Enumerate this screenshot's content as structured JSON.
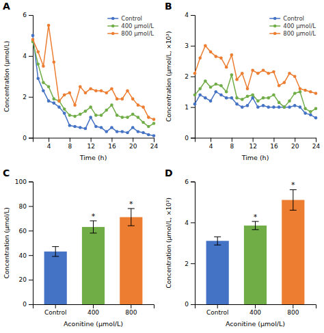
{
  "chart_data": [
    {
      "type": "line",
      "title": "A",
      "xlabel": "Time (h)",
      "ylabel": "Concentration (μmol/L)",
      "x": [
        1,
        2,
        3,
        4,
        5,
        6,
        7,
        8,
        9,
        10,
        11,
        12,
        13,
        14,
        15,
        16,
        17,
        18,
        19,
        20,
        21,
        22,
        23,
        24
      ],
      "xlim": [
        1,
        24
      ],
      "xticks": [
        4,
        8,
        12,
        16,
        20,
        24
      ],
      "ylim": [
        0,
        6
      ],
      "yticks": [
        0,
        2,
        4,
        6
      ],
      "grid": false,
      "legend": "upper right",
      "series": [
        {
          "name": "Control",
          "color": "#4472C4",
          "marker": "circle",
          "values": [
            5.0,
            2.9,
            2.3,
            1.8,
            1.7,
            1.5,
            1.2,
            0.6,
            0.55,
            0.5,
            0.45,
            1.0,
            0.55,
            0.5,
            0.3,
            0.5,
            0.3,
            0.3,
            0.25,
            0.5,
            0.3,
            0.25,
            0.15,
            0.1
          ]
        },
        {
          "name": "400 μmol/L",
          "color": "#70AD47",
          "marker": "circle",
          "values": [
            4.7,
            3.6,
            2.7,
            2.5,
            1.9,
            1.8,
            1.4,
            1.1,
            1.05,
            1.15,
            1.3,
            1.5,
            1.1,
            1.1,
            1.35,
            1.6,
            1.1,
            1.0,
            1.0,
            1.15,
            1.0,
            0.75,
            0.55,
            0.7
          ]
        },
        {
          "name": "800 μmol/L",
          "color": "#ED7D31",
          "marker": "circle",
          "values": [
            4.8,
            4.2,
            3.5,
            5.5,
            3.7,
            1.8,
            2.1,
            2.2,
            1.6,
            2.5,
            2.2,
            2.4,
            2.3,
            2.3,
            2.2,
            2.4,
            1.9,
            1.9,
            2.3,
            1.9,
            1.6,
            1.5,
            1.0,
            0.9
          ]
        }
      ]
    },
    {
      "type": "line",
      "title": "B",
      "xlabel": "Time (h)",
      "ylabel": "Concentration (μmol/L, ×10²)",
      "x": [
        1,
        2,
        3,
        4,
        5,
        6,
        7,
        8,
        9,
        10,
        11,
        12,
        13,
        14,
        15,
        16,
        17,
        18,
        19,
        20,
        21,
        22,
        23,
        24
      ],
      "xlim": [
        1,
        24
      ],
      "xticks": [
        4,
        8,
        12,
        16,
        20,
        24
      ],
      "ylim": [
        0,
        4
      ],
      "yticks": [
        0,
        1,
        2,
        3,
        4
      ],
      "grid": false,
      "legend": "upper right",
      "series": [
        {
          "name": "Control",
          "color": "#4472C4",
          "marker": "circle",
          "values": [
            1.1,
            1.4,
            1.3,
            1.2,
            1.5,
            1.4,
            1.3,
            1.3,
            1.1,
            1.0,
            1.05,
            1.3,
            1.0,
            1.05,
            1.0,
            1.0,
            1.0,
            1.0,
            1.0,
            1.05,
            1.0,
            0.8,
            0.75,
            0.65
          ]
        },
        {
          "name": "400 μmol/L",
          "color": "#70AD47",
          "marker": "circle",
          "values": [
            1.4,
            1.6,
            1.85,
            1.65,
            1.75,
            1.7,
            1.5,
            2.05,
            1.3,
            1.25,
            1.35,
            1.4,
            1.2,
            1.3,
            1.3,
            1.4,
            1.15,
            1.0,
            1.2,
            1.45,
            1.5,
            0.95,
            0.85,
            0.95
          ]
        },
        {
          "name": "800 μmol/L",
          "color": "#ED7D31",
          "marker": "circle",
          "values": [
            2.1,
            2.6,
            3.0,
            2.8,
            2.65,
            2.6,
            2.3,
            2.7,
            1.9,
            2.1,
            1.6,
            2.2,
            2.1,
            2.2,
            2.1,
            2.15,
            1.7,
            1.8,
            2.1,
            2.0,
            1.6,
            1.55,
            1.5,
            1.45
          ]
        }
      ]
    },
    {
      "type": "bar",
      "title": "C",
      "xlabel": "Aconitine (μmol/L)",
      "ylabel": "Concentration (μmol/L)",
      "categories": [
        "Control",
        "400",
        "800"
      ],
      "values": [
        43,
        63,
        71
      ],
      "errors": [
        4,
        5,
        7
      ],
      "colors": [
        "#4472C4",
        "#70AD47",
        "#ED7D31"
      ],
      "ylim": [
        0,
        100
      ],
      "yticks": [
        0,
        20,
        40,
        60,
        80,
        100
      ],
      "grid": false,
      "annotations": [
        {
          "text": "*",
          "category": "400"
        },
        {
          "text": "*",
          "category": "800"
        }
      ]
    },
    {
      "type": "bar",
      "title": "D",
      "xlabel": "Aconitine (μmol/L)",
      "ylabel": "Concentration (μmol/L, ×10²)",
      "categories": [
        "Control",
        "400",
        "800"
      ],
      "values": [
        3.1,
        3.85,
        5.1
      ],
      "errors": [
        0.2,
        0.2,
        0.5
      ],
      "colors": [
        "#4472C4",
        "#70AD47",
        "#ED7D31"
      ],
      "ylim": [
        0,
        6
      ],
      "yticks": [
        0,
        2,
        4,
        6
      ],
      "grid": false,
      "annotations": [
        {
          "text": "*",
          "category": "400"
        },
        {
          "text": "*",
          "category": "800"
        }
      ]
    }
  ]
}
